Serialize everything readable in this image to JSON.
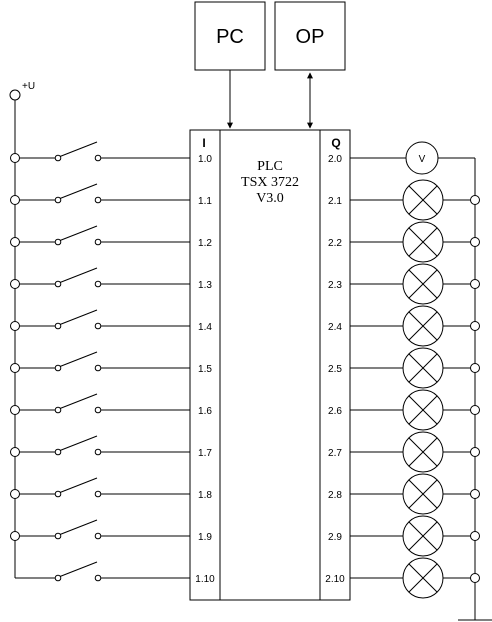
{
  "boxes": {
    "pc_label": "PC",
    "op_label": "OP"
  },
  "supply": {
    "label": "+U"
  },
  "plc": {
    "name": "PLC",
    "model": "TSX 3722",
    "version": "V3.0",
    "input_header": "I",
    "output_header": "Q"
  },
  "inputs": [
    "1.0",
    "1.1",
    "1.2",
    "1.3",
    "1.4",
    "1.5",
    "1.6",
    "1.7",
    "1.8",
    "1.9",
    "1.10"
  ],
  "outputs": [
    {
      "label": "2.0",
      "device": "voltmeter",
      "symbol": "V"
    },
    {
      "label": "2.1",
      "device": "lamp"
    },
    {
      "label": "2.2",
      "device": "lamp"
    },
    {
      "label": "2.3",
      "device": "lamp"
    },
    {
      "label": "2.4",
      "device": "lamp"
    },
    {
      "label": "2.5",
      "device": "lamp"
    },
    {
      "label": "2.6",
      "device": "lamp"
    },
    {
      "label": "2.7",
      "device": "lamp"
    },
    {
      "label": "2.8",
      "device": "lamp"
    },
    {
      "label": "2.9",
      "device": "lamp"
    },
    {
      "label": "2.10",
      "device": "lamp"
    }
  ]
}
